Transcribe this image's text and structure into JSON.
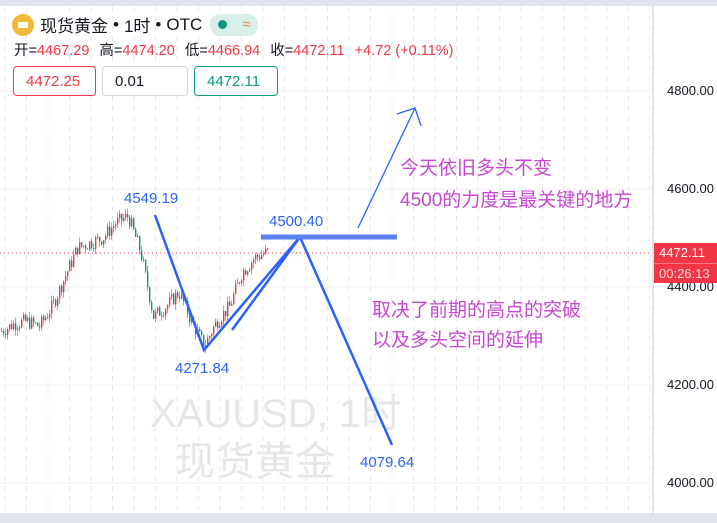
{
  "header": {
    "symbol_name": "现货黄金",
    "separator": "•",
    "interval": "1时",
    "exchange": "OTC",
    "market_status_color": "#089981",
    "wave_icon": "≈"
  },
  "ohlc": {
    "open_label": "开=",
    "open": "4467.29",
    "high_label": "高=",
    "high": "4474.20",
    "low_label": "低=",
    "low": "4466.94",
    "close_label": "收=",
    "close": "4472.11",
    "change": "+4.72 (+0.11%)"
  },
  "trade": {
    "sell_price": "4472.25",
    "quantity": "0.01",
    "buy_price": "4472.11"
  },
  "price_axis": {
    "ticks": [
      "4800.00",
      "4600.00",
      "4400.00",
      "4200.00",
      "4000.00"
    ],
    "current_price": "4472.11",
    "countdown": "00:26:13"
  },
  "watermark": {
    "line1": "XAUUSD, 1时",
    "line2": "现货黄金"
  },
  "annotations": {
    "high_label": "4549.19",
    "low_label": "4271.84",
    "resistance_label": "4500.40",
    "target_label": "4079.64",
    "note1_line1": "今天依旧多头不变",
    "note1_line2": "4500的力度是最关键的地方",
    "note2_line1": "取决了前期的高点的突破",
    "note2_line2": "以及多头空间的延伸"
  },
  "colors": {
    "up": "#f23645",
    "down": "#089981",
    "drawing": "#2962ff",
    "note": "#c945d3"
  },
  "chart_data": {
    "type": "candlestick",
    "ylim": [
      3975,
      4880
    ],
    "approx_close_path": [
      4310,
      4325,
      4330,
      4320,
      4360,
      4420,
      4480,
      4490,
      4500,
      4530,
      4545,
      4470,
      4340,
      4360,
      4390,
      4330,
      4280,
      4330,
      4360,
      4430,
      4460,
      4472
    ]
  }
}
